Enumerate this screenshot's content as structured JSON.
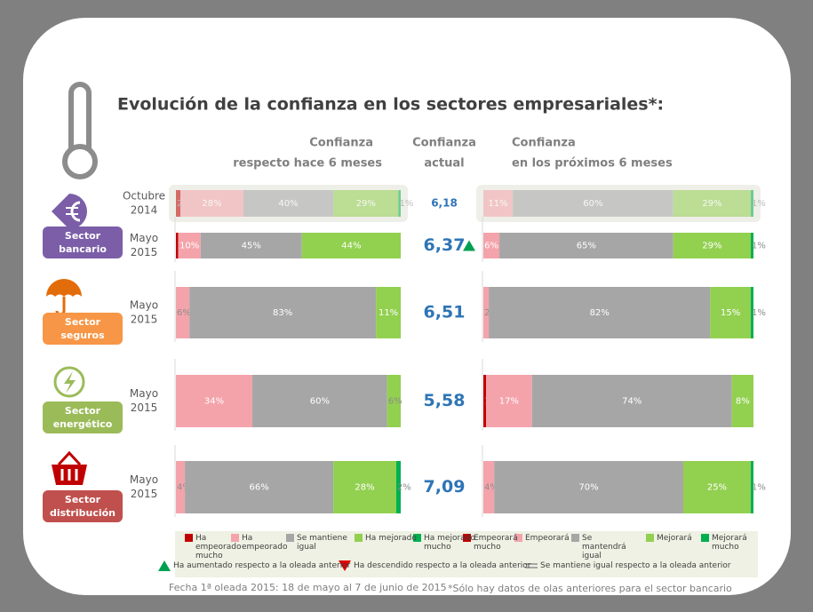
{
  "title": "Evolución de la confianza en los sectores empresariales*:",
  "headers": {
    "past": [
      "Confianza",
      "respecto hace 6 meses"
    ],
    "current": [
      "Confianza",
      "actual"
    ],
    "future": [
      "Confianza",
      "en los próximos 6 meses"
    ]
  },
  "segment_colors": [
    "#c00000",
    "#f4a3ab",
    "#a6a6a6",
    "#92d050",
    "#00b050"
  ],
  "sectors": [
    {
      "name": [
        "Sector",
        "bancario"
      ],
      "color": "#7b5ea7",
      "rows": [
        {
          "period": [
            "Octubre",
            "2014"
          ],
          "faded": true,
          "past": {
            "values": [
              2,
              28,
              40,
              29,
              1
            ],
            "value_labels": [
              "2%",
              "28%",
              "40%",
              "29%",
              "1%"
            ]
          },
          "current": "6,18",
          "future": {
            "values": [
              null,
              11,
              60,
              29,
              1
            ],
            "value_labels": [
              null,
              "11%",
              "60%",
              "29%",
              "1%"
            ]
          }
        },
        {
          "period": [
            "Mayo",
            "2015"
          ],
          "trend": "up",
          "past": {
            "values": [
              1,
              10,
              45,
              44,
              null
            ],
            "value_labels": [
              "1%",
              "10%",
              "45%",
              "44%",
              null
            ]
          },
          "current": "6,37",
          "future": {
            "values": [
              null,
              6,
              65,
              29,
              1
            ],
            "value_labels": [
              null,
              "6%",
              "65%",
              "29%",
              "1%"
            ]
          }
        }
      ]
    },
    {
      "name": [
        "Sector",
        "seguros"
      ],
      "color": "#f79646",
      "rows": [
        {
          "period": [
            "Mayo",
            "2015"
          ],
          "past": {
            "values": [
              null,
              6,
              83,
              11,
              null
            ],
            "value_labels": [
              null,
              "6%",
              "83%",
              "11%",
              null
            ]
          },
          "current": "6,51",
          "future": {
            "values": [
              null,
              2,
              82,
              15,
              1
            ],
            "value_labels": [
              null,
              "2%",
              "82%",
              "15%",
              "1%"
            ]
          }
        }
      ]
    },
    {
      "name": [
        "Sector",
        "energético"
      ],
      "color": "#9bbb59",
      "rows": [
        {
          "period": [
            "Mayo",
            "2015"
          ],
          "past": {
            "values": [
              null,
              34,
              60,
              6,
              null
            ],
            "value_labels": [
              null,
              "34%",
              "60%",
              "6%",
              null
            ]
          },
          "current": "5,58",
          "future": {
            "values": [
              1,
              17,
              74,
              8,
              null
            ],
            "value_labels": [
              "1%",
              "17%",
              "74%",
              "8%",
              null
            ]
          }
        }
      ]
    },
    {
      "name": [
        "Sector",
        "distribución"
      ],
      "color": "#c0504d",
      "rows": [
        {
          "period": [
            "Mayo",
            "2015"
          ],
          "past": {
            "values": [
              null,
              4,
              66,
              28,
              2
            ],
            "value_labels": [
              null,
              "4%",
              "66%",
              "28%",
              "2%"
            ]
          },
          "current": "7,09",
          "future": {
            "values": [
              null,
              4,
              70,
              25,
              1
            ],
            "value_labels": [
              null,
              "4%",
              "70%",
              "25%",
              "1%"
            ]
          }
        }
      ]
    }
  ],
  "legend": {
    "past": [
      "Ha empeorado mucho",
      "Ha empeorado",
      "Se mantiene igual",
      "Ha mejorado",
      "Ha mejorado mucho"
    ],
    "future": [
      "Empeorará mucho",
      "Empeorará",
      "Se mantendrá igual",
      "Mejorará",
      "Mejorará mucho"
    ],
    "trend": [
      {
        "shape": "up",
        "color": "#00a050",
        "label": "Ha aumentado respecto a la oleada anterior"
      },
      {
        "shape": "down",
        "color": "#e00000",
        "label": "Ha descendido respecto a la oleada anterior"
      },
      {
        "shape": "equal",
        "color": "#a6a6a6",
        "label": "Se mantiene igual respecto a la oleada anterior"
      }
    ]
  },
  "footer": {
    "date": "Fecha 1ª oleada 2015: 18 de mayo al 7 de junio de 2015",
    "note": "*Sólo hay datos de olas anteriores para el sector bancario"
  }
}
